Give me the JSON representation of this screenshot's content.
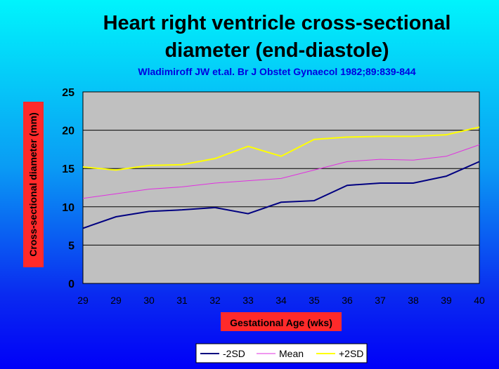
{
  "chart_data": {
    "type": "line",
    "title_lines": [
      "Heart right ventricle cross-sectional",
      "diameter (end-diastole)"
    ],
    "subtitle": "Wladimiroff JW et.al. Br J Obstet Gynaecol 1982;89:839-844",
    "xlabel": "Gestational Age (wks)",
    "ylabel": "Cross-sectional diameter (mm)",
    "categories": [
      "29",
      "29",
      "30",
      "31",
      "32",
      "33",
      "34",
      "35",
      "36",
      "37",
      "38",
      "39",
      "40"
    ],
    "ylim": [
      0,
      25
    ],
    "yticks": [
      0,
      5,
      10,
      15,
      20,
      25
    ],
    "grid": true,
    "legend_position": "bottom",
    "plot_background": "#c0c0c0",
    "label_box_color": "#ff2a2a",
    "series": [
      {
        "name": "-2SD",
        "color": "#000080",
        "values": [
          7.2,
          8.7,
          9.4,
          9.6,
          9.9,
          9.1,
          10.6,
          10.8,
          12.8,
          13.1,
          13.1,
          14.0,
          15.9
        ]
      },
      {
        "name": "Mean",
        "color": "#e030e0",
        "values": [
          11.1,
          11.7,
          12.3,
          12.6,
          13.1,
          13.4,
          13.7,
          14.8,
          15.9,
          16.2,
          16.1,
          16.6,
          18.1
        ]
      },
      {
        "name": "+2SD",
        "color": "#ffff00",
        "values": [
          15.2,
          14.8,
          15.4,
          15.5,
          16.3,
          17.9,
          16.6,
          18.8,
          19.1,
          19.2,
          19.2,
          19.4,
          20.4
        ]
      }
    ]
  }
}
